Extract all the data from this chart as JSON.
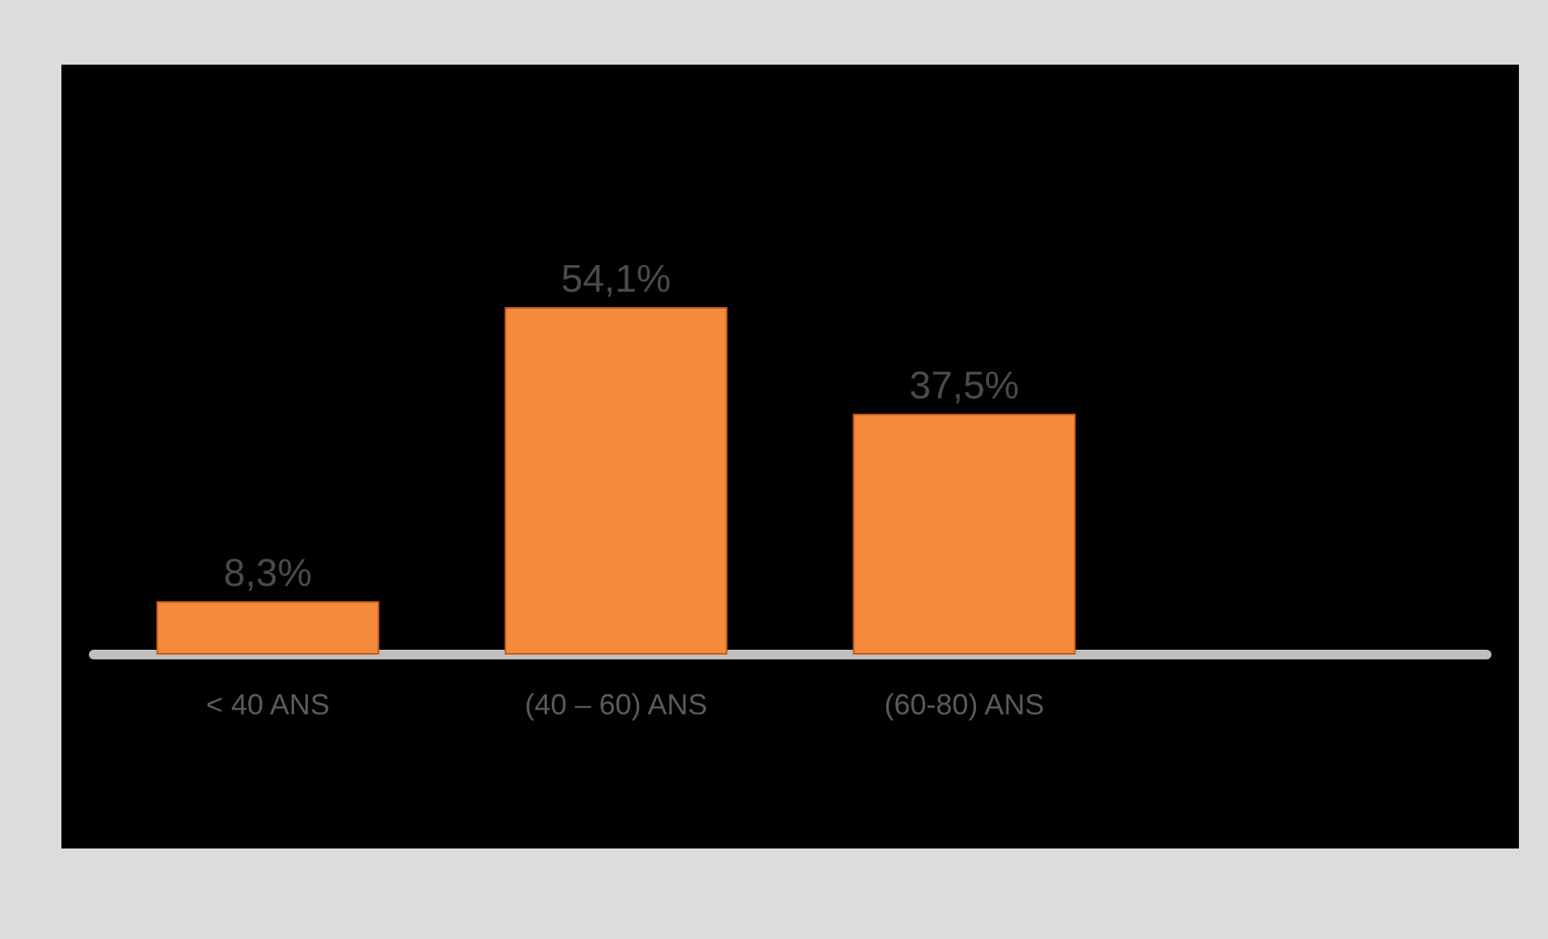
{
  "chart_data": {
    "type": "bar",
    "categories": [
      "< 40 ANS",
      "(40 – 60) ANS",
      "(60-80) ANS",
      null
    ],
    "values": [
      8.3,
      54.1,
      37.5,
      null
    ],
    "value_labels": [
      "8,3%",
      "54,1%",
      "37,5%",
      null
    ],
    "color": "#f58a3c"
  }
}
